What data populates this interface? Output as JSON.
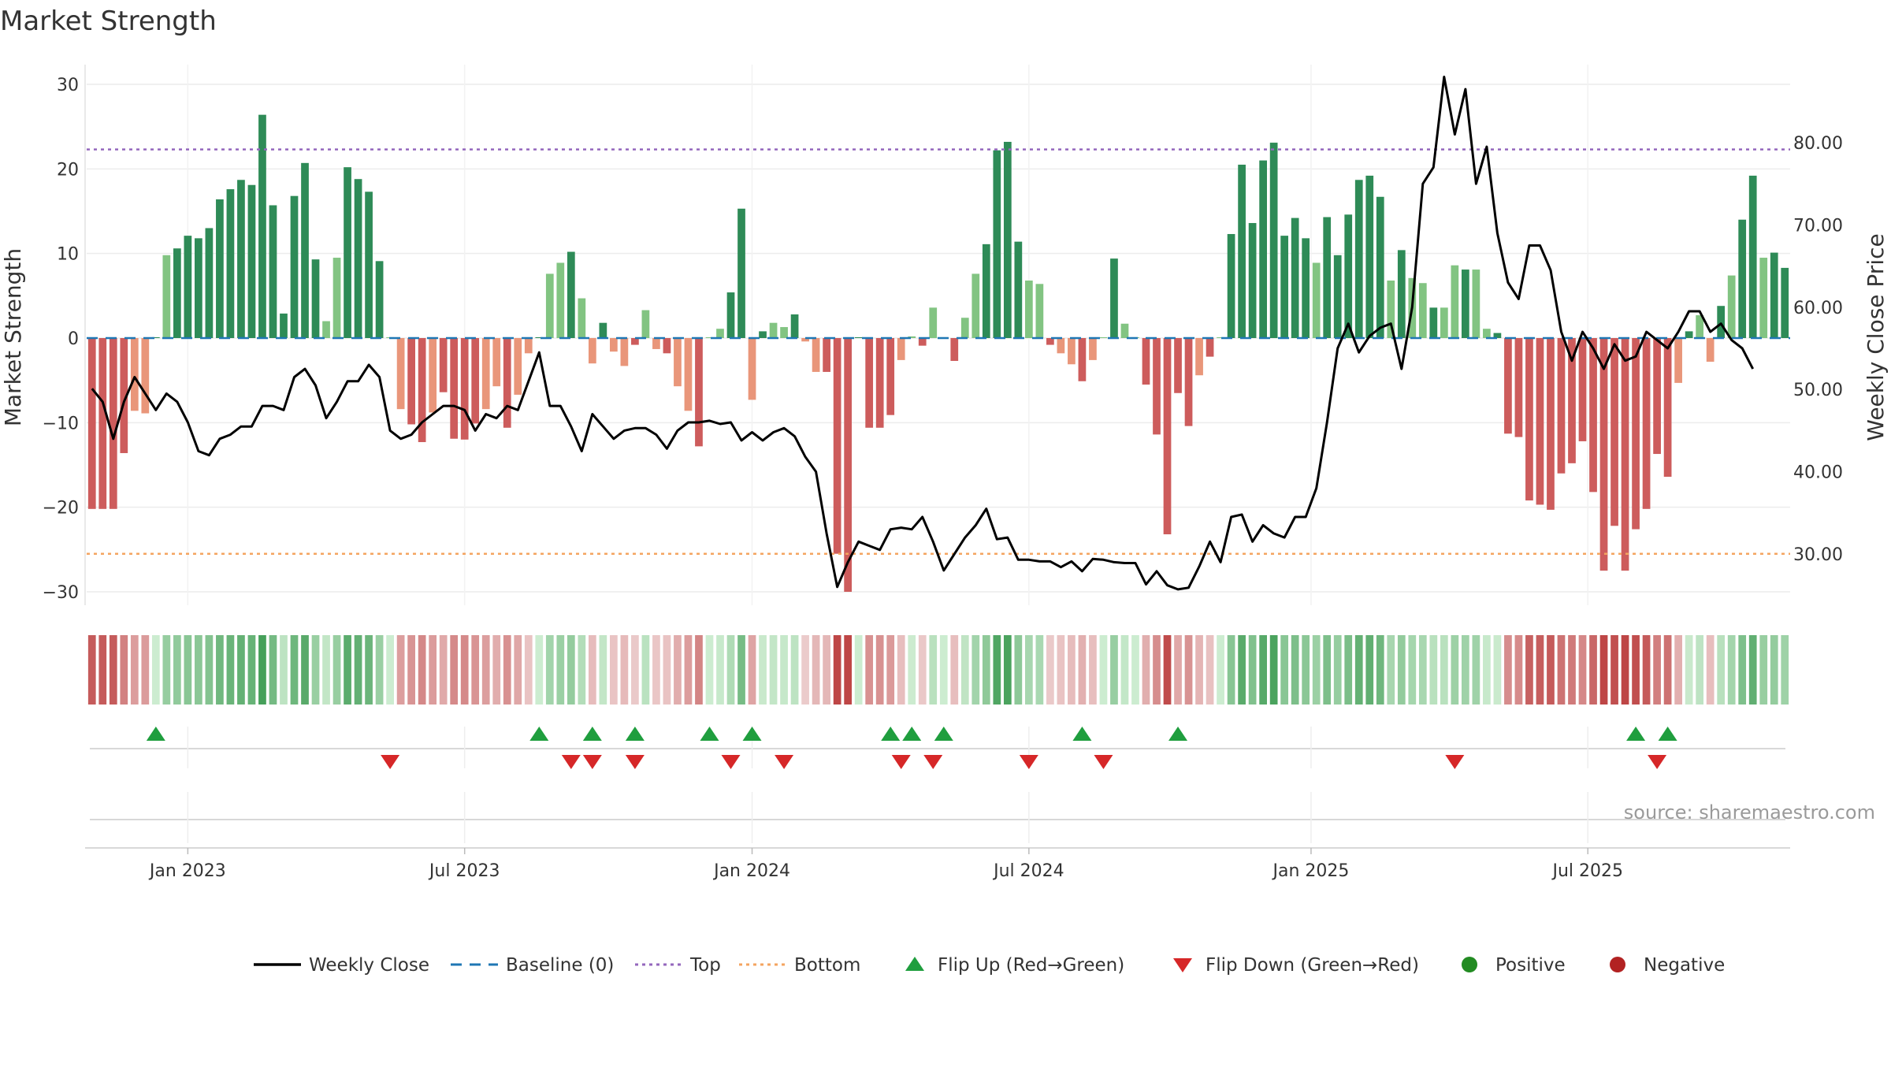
{
  "chart_data": {
    "type": "bar",
    "title": "Market Strength",
    "ylabel_left": "Market Strength",
    "ylabel_right": "Weekly Close Price",
    "source": "source: sharemaestro.com",
    "left_ylim": [
      -31,
      31
    ],
    "left_ticks": [
      "30",
      "20",
      "10",
      "0",
      "−10",
      "−20",
      "−30"
    ],
    "right_ylim": [
      21,
      92
    ],
    "right_ticks": [
      "80.00",
      "70.00",
      "60.00",
      "50.00",
      "40.00",
      "30.00"
    ],
    "top_level": 22.3,
    "bottom_level": -25.5,
    "grid": true,
    "x_labels": [
      "Jan 2023",
      "Jul 2023",
      "Jan 2024",
      "Jul 2024",
      "Jan 2025",
      "Jul 2025"
    ],
    "colors": {
      "positive_strong": "#2e8b57",
      "positive_weak": "#82c482",
      "negative_strong": "#cd5c5c",
      "negative_weak": "#e9967a",
      "close_line": "#000000",
      "baseline": "#1f77b4",
      "top": "#9467bd",
      "bottom": "#f4a460",
      "flip_up": "#1f9e3e",
      "flip_down": "#d62728",
      "positive_marker": "#228b22",
      "negative_marker": "#b22222"
    },
    "strength": [
      -20.2,
      -20.2,
      -20.2,
      -13.6,
      -8.6,
      -8.9,
      0.1,
      9.8,
      10.6,
      12.1,
      11.8,
      13,
      16.4,
      17.6,
      18.7,
      18.1,
      26.4,
      15.7,
      2.9,
      16.8,
      20.7,
      9.3,
      2,
      9.5,
      20.2,
      18.8,
      17.3,
      9.1,
      0.1,
      -8.4,
      -10.2,
      -12.3,
      -8.8,
      -6.4,
      -11.9,
      -12,
      -10.1,
      -8.4,
      -5.7,
      -10.6,
      -6.7,
      -1.8,
      0.1,
      7.6,
      8.9,
      10.2,
      4.7,
      -3,
      1.8,
      -1.6,
      -3.3,
      -0.8,
      3.3,
      -1.3,
      -1.8,
      -5.7,
      -8.6,
      -12.8,
      0.1,
      1.1,
      5.4,
      15.3,
      -7.3,
      0.8,
      1.8,
      1.3,
      2.8,
      -0.4,
      -4,
      -4,
      -25.5,
      -30,
      0.1,
      -10.6,
      -10.6,
      -9.1,
      -2.6,
      0.2,
      -0.9,
      3.6,
      0.1,
      -2.7,
      2.4,
      7.6,
      11.1,
      22.2,
      23.2,
      11.4,
      6.8,
      6.4,
      -0.8,
      -1.8,
      -3.1,
      -5.1,
      -2.6,
      0.1,
      9.4,
      1.7,
      0.1,
      -5.5,
      -11.4,
      -23.2,
      -6.5,
      -10.4,
      -4.4,
      -2.2,
      0.1,
      12.3,
      20.5,
      13.6,
      21,
      23.1,
      12.1,
      14.2,
      11.8,
      8.9,
      14.3,
      9.8,
      14.6,
      18.7,
      19.2,
      16.7,
      6.8,
      10.4,
      7.1,
      6.5,
      3.6,
      3.6,
      8.6,
      8.1,
      8.1,
      1.1,
      0.6,
      -11.3,
      -11.7,
      -19.2,
      -19.7,
      -20.3,
      -16,
      -14.8,
      -12.2,
      -18.2,
      -27.5,
      -22.2,
      -27.5,
      -22.6,
      -20.2,
      -13.7,
      -16.4,
      -5.3,
      0.8,
      2.7,
      -2.8,
      3.8,
      7.4,
      14,
      19.2,
      9.5,
      10.1,
      8.3
    ],
    "weekly_close": [
      50.1,
      48.5,
      44,
      48.5,
      51.5,
      49.5,
      47.5,
      49.5,
      48.5,
      46,
      42.5,
      42,
      44,
      44.5,
      45.5,
      45.5,
      48,
      48,
      47.5,
      51.5,
      52.5,
      50.5,
      46.5,
      48.5,
      51,
      51,
      53,
      51.5,
      45,
      44,
      44.5,
      46,
      47,
      48,
      48,
      47.5,
      45,
      47,
      46.5,
      48,
      47.5,
      51,
      54.5,
      48,
      48,
      45.5,
      42.5,
      47,
      45.5,
      44,
      45,
      45.3,
      45.3,
      44.5,
      42.8,
      45,
      46,
      46,
      46.2,
      45.8,
      46,
      43.8,
      44.8,
      43.8,
      44.8,
      45.3,
      44.3,
      41.8,
      40,
      32.5,
      26,
      29,
      31.5,
      31,
      30.5,
      33,
      33.2,
      33,
      34.5,
      31.5,
      28,
      30,
      32,
      33.5,
      35.5,
      31.8,
      32,
      29.3,
      29.3,
      29.1,
      29.1,
      28.4,
      29.1,
      27.9,
      29.4,
      29.3,
      29,
      28.9,
      28.9,
      26.3,
      27.9,
      26.2,
      25.7,
      25.9,
      28.5,
      31.5,
      29,
      34.5,
      34.8,
      31.5,
      33.5,
      32.5,
      32,
      34.5,
      34.5,
      38,
      46,
      55,
      58,
      54.5,
      56.5,
      57.5,
      58,
      52.5,
      60,
      75,
      77,
      88,
      81,
      86.5,
      75,
      79.5,
      69,
      63,
      61,
      67.5,
      67.5,
      64.5,
      57,
      53.5,
      57,
      55,
      52.5,
      55.5,
      53.5,
      54,
      57,
      56,
      55,
      57,
      59.5,
      59.5,
      57,
      58,
      56,
      55,
      52.5
    ],
    "flip_up_weeks": [
      6,
      42,
      47,
      51,
      58,
      62,
      75,
      77,
      80,
      93,
      102,
      145,
      148
    ],
    "flip_down_weeks": [
      28,
      45,
      47,
      51,
      60,
      65,
      76,
      79,
      88,
      95,
      128,
      147
    ],
    "legend": [
      {
        "label": "Weekly Close",
        "kind": "line-solid",
        "color": "#000000"
      },
      {
        "label": "Baseline (0)",
        "kind": "line-dash",
        "color": "#1f77b4"
      },
      {
        "label": "Top",
        "kind": "line-dot",
        "color": "#9467bd"
      },
      {
        "label": "Bottom",
        "kind": "line-dot",
        "color": "#f4a460"
      },
      {
        "label": "Flip Up (Red→Green)",
        "kind": "tri-up",
        "color": "#1f9e3e"
      },
      {
        "label": "Flip Down (Green→Red)",
        "kind": "tri-down",
        "color": "#d62728"
      },
      {
        "label": "Positive",
        "kind": "circle",
        "color": "#228b22"
      },
      {
        "label": "Negative",
        "kind": "circle",
        "color": "#b22222"
      }
    ]
  }
}
